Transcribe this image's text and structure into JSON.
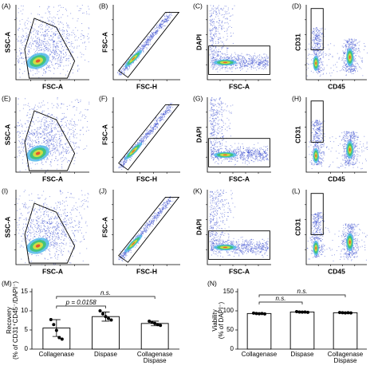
{
  "chart_data": [
    {
      "type": "density",
      "label": "(A)",
      "xlabel": "FSC-A",
      "ylabel": "SSC-A"
    },
    {
      "type": "density",
      "label": "(B)",
      "xlabel": "FSC-H",
      "ylabel": "FSC-A"
    },
    {
      "type": "density",
      "label": "(C)",
      "xlabel": "FSC-A",
      "ylabel": "DAPI"
    },
    {
      "type": "density",
      "label": "(D)",
      "xlabel": "CD45",
      "ylabel": "CD31"
    },
    {
      "type": "density",
      "label": "(E)",
      "xlabel": "FSC-A",
      "ylabel": "SSC-A"
    },
    {
      "type": "density",
      "label": "(F)",
      "xlabel": "FSC-H",
      "ylabel": "FSC-A"
    },
    {
      "type": "density",
      "label": "(G)",
      "xlabel": "FSC-A",
      "ylabel": "DAPI"
    },
    {
      "type": "density",
      "label": "(H)",
      "xlabel": "CD45",
      "ylabel": "CD31"
    },
    {
      "type": "density",
      "label": "(I)",
      "xlabel": "FSC-A",
      "ylabel": "SSC-A"
    },
    {
      "type": "density",
      "label": "(J)",
      "xlabel": "FSC-H",
      "ylabel": "FSC-A"
    },
    {
      "type": "density",
      "label": "(K)",
      "xlabel": "FSC-A",
      "ylabel": "DAPI"
    },
    {
      "type": "density",
      "label": "(L)",
      "xlabel": "CD45",
      "ylabel": "CD31"
    },
    {
      "type": "bar",
      "label": "(M)",
      "ylabel": [
        "Recovery",
        "(% of CD31⁺CD45⁻/DAPI⁻)"
      ],
      "categories": [
        "Collagenase",
        "Dispase",
        [
          "Collagenase",
          "Dispase"
        ]
      ],
      "values": [
        5.5,
        8.5,
        6.7
      ],
      "errors": [
        2.2,
        1.2,
        0.6
      ],
      "points": [
        [
          7.7,
          6.4,
          4.9,
          3.0,
          2.6
        ],
        [
          10.0,
          9.2,
          8.5,
          8.0,
          7.6
        ],
        [
          7.3,
          7.0,
          6.7,
          6.4,
          6.2
        ]
      ],
      "ylim": [
        0,
        15
      ],
      "yticks": [
        0,
        5,
        10,
        15
      ],
      "annotations": [
        "p = 0.0158",
        "n.s."
      ]
    },
    {
      "type": "bar",
      "label": "(N)",
      "ylabel": [
        "Viability",
        "(% of DAPI⁻)"
      ],
      "categories": [
        "Collagenase",
        "Dispase",
        [
          "Collagenase",
          "Dispase"
        ]
      ],
      "values": [
        93,
        97,
        95
      ],
      "errors": [
        1.5,
        1.5,
        1.2
      ],
      "points": [
        [
          94,
          93,
          92.5,
          93,
          92
        ],
        [
          98,
          97,
          96.5,
          97,
          96
        ],
        [
          95.5,
          95,
          94.5,
          95,
          94.5
        ]
      ],
      "ylim": [
        0,
        150
      ],
      "yticks": [
        0,
        50,
        100,
        150
      ],
      "annotations": [
        "n.s.",
        "n.s."
      ]
    }
  ]
}
